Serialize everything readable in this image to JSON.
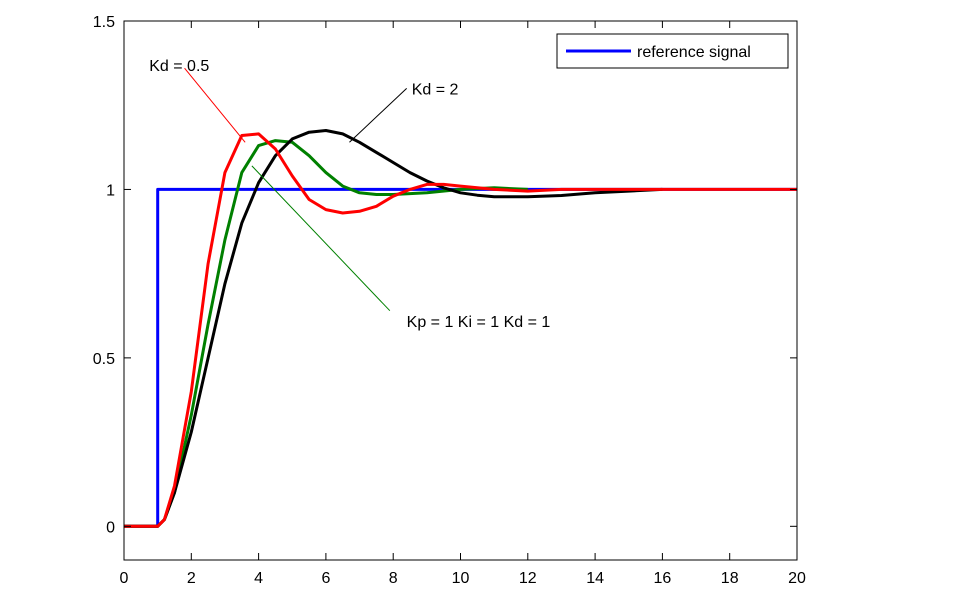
{
  "chart_data": {
    "type": "line",
    "title": "",
    "xlabel": "",
    "ylabel": "",
    "xlim": [
      0,
      20
    ],
    "ylim": [
      -0.1,
      1.5
    ],
    "xticks": [
      0,
      2,
      4,
      6,
      8,
      10,
      12,
      14,
      16,
      18,
      20
    ],
    "yticks": [
      0,
      0.5,
      1,
      1.5
    ],
    "xtick_labels": [
      "0",
      "2",
      "4",
      "6",
      "8",
      "10",
      "12",
      "14",
      "16",
      "18",
      "20"
    ],
    "ytick_labels": [
      "0",
      "0.5",
      "1",
      "1.5"
    ],
    "grid": false,
    "legend": {
      "location": "top-right",
      "entries": [
        {
          "label": "reference signal",
          "color": "#0000ff"
        }
      ]
    },
    "series": [
      {
        "name": "reference signal",
        "color": "#0000ff",
        "x": [
          0,
          1,
          1,
          20
        ],
        "y": [
          0,
          0,
          1,
          1
        ]
      },
      {
        "name": "Kp = 1  Ki = 1  Kd = 1",
        "color": "#008000",
        "x": [
          0,
          1,
          1.2,
          1.5,
          2,
          2.5,
          3,
          3.5,
          4,
          4.5,
          5,
          5.5,
          6,
          6.5,
          7,
          7.5,
          8,
          9,
          10,
          11,
          12
        ],
        "y": [
          0,
          0,
          0.02,
          0.1,
          0.33,
          0.6,
          0.85,
          1.05,
          1.13,
          1.145,
          1.14,
          1.1,
          1.05,
          1.01,
          0.99,
          0.985,
          0.985,
          0.99,
          1.0,
          1.005,
          1.0
        ]
      },
      {
        "name": "Kd = 2",
        "color": "#000000",
        "x": [
          0,
          1,
          1.2,
          1.5,
          2,
          2.5,
          3,
          3.5,
          4,
          4.5,
          5,
          5.5,
          6,
          6.5,
          7,
          7.5,
          8,
          8.5,
          9,
          9.5,
          10,
          10.5,
          11,
          12,
          13,
          14,
          15,
          16
        ],
        "y": [
          0,
          0,
          0.02,
          0.1,
          0.28,
          0.5,
          0.72,
          0.9,
          1.02,
          1.1,
          1.15,
          1.17,
          1.175,
          1.165,
          1.14,
          1.11,
          1.08,
          1.05,
          1.025,
          1.005,
          0.99,
          0.983,
          0.978,
          0.978,
          0.982,
          0.99,
          0.995,
          1.0
        ]
      },
      {
        "name": "Kd = 0.5",
        "color": "#ff0000",
        "x": [
          0,
          1,
          1.2,
          1.5,
          2,
          2.5,
          3,
          3.5,
          4,
          4.5,
          5,
          5.5,
          6,
          6.5,
          7,
          7.5,
          8,
          8.5,
          9,
          9.5,
          10,
          11,
          12,
          13,
          20
        ],
        "y": [
          0,
          0,
          0.02,
          0.12,
          0.4,
          0.78,
          1.05,
          1.16,
          1.165,
          1.12,
          1.04,
          0.97,
          0.94,
          0.93,
          0.935,
          0.95,
          0.98,
          1.0,
          1.015,
          1.015,
          1.01,
          1.0,
          0.995,
          1.0,
          1.0
        ]
      }
    ],
    "annotations": [
      {
        "text": "Kd = 0.5",
        "color": "#ff0000",
        "from_x": 1.8,
        "from_y": 1.36,
        "to_x": 3.6,
        "to_y": 1.14,
        "label_x": 0.75,
        "label_y": 1.37
      },
      {
        "text": "Kd = 2",
        "color": "#000000",
        "from_x": 8.4,
        "from_y": 1.3,
        "to_x": 6.7,
        "to_y": 1.14,
        "label_x": 8.55,
        "label_y": 1.3
      },
      {
        "text": "Kp = 1  Ki = 1  Kd = 1",
        "color": "#008000",
        "from_x": 7.9,
        "from_y": 0.64,
        "to_x": 3.8,
        "to_y": 1.07,
        "label_x": 8.4,
        "label_y": 0.61
      }
    ]
  }
}
